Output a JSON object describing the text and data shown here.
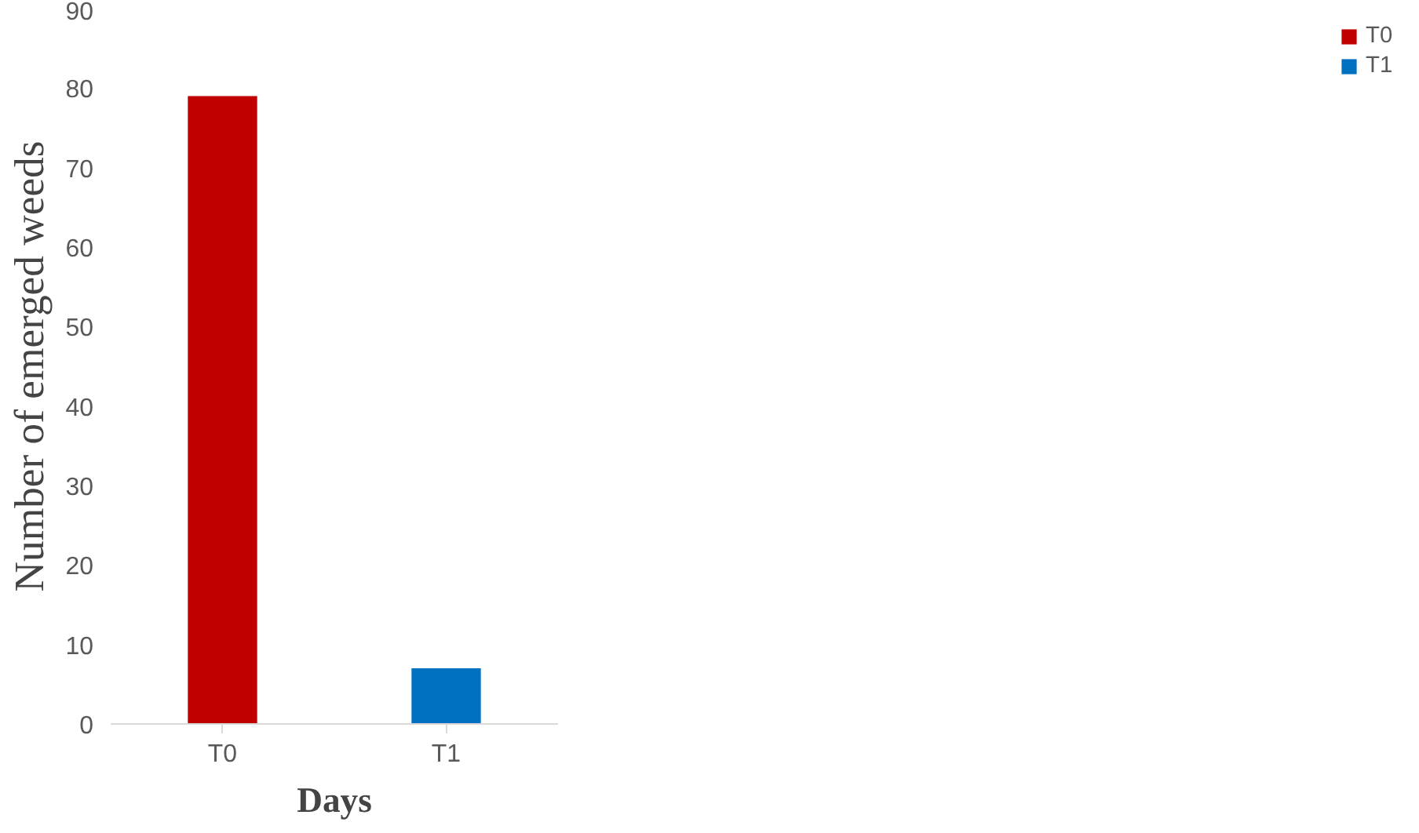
{
  "chart_data": {
    "type": "bar",
    "xlabel": "Days",
    "ylabel": "Number of emerged weeds",
    "categories": [
      "T0",
      "T1"
    ],
    "series": [
      {
        "name": "T0",
        "color": "#c00000",
        "values": [
          79,
          null
        ]
      },
      {
        "name": "T1",
        "color": "#0070c0",
        "values": [
          null,
          7
        ]
      }
    ],
    "ylim": [
      0,
      90
    ],
    "yticks": [
      0,
      10,
      20,
      30,
      40,
      50,
      60,
      70,
      80,
      90
    ],
    "grid": false,
    "legend": "right"
  }
}
